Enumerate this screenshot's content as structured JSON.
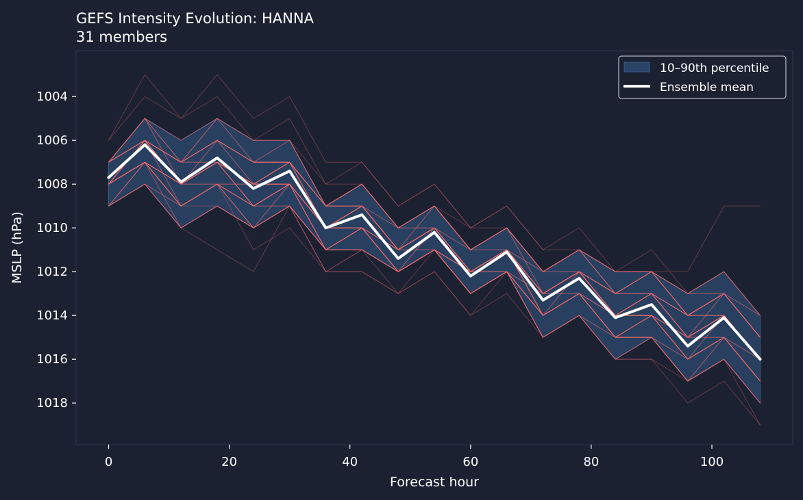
{
  "colors": {
    "background": "#1c2132",
    "axes_frame": "#2c3245",
    "band_fill": "#2a4468",
    "band_edge": "#3b5d86",
    "member_line": "#f26b6b",
    "mean_line": "#ffffff",
    "text": "#ffffff",
    "legend_border": "#aeb4c0"
  },
  "chart_data": {
    "type": "line",
    "title": "GEFS Intensity Evolution: HANNA",
    "subtitle": "31 members",
    "xlabel": "Forecast hour",
    "ylabel": "MSLP (hPa)",
    "xlim": [
      -5.4,
      113.4
    ],
    "ylim": [
      1019.9,
      1001.9
    ],
    "y_inverted": true,
    "x_ticks": [
      0,
      20,
      40,
      60,
      80,
      100
    ],
    "y_ticks": [
      1004,
      1006,
      1008,
      1010,
      1012,
      1014,
      1016,
      1018
    ],
    "grid": false,
    "legend_position": "top-right",
    "legend": [
      {
        "label": "10–90th percentile",
        "kind": "band"
      },
      {
        "label": "Ensemble mean",
        "kind": "line"
      }
    ],
    "x": [
      0,
      6,
      12,
      18,
      24,
      30,
      36,
      42,
      48,
      54,
      60,
      66,
      72,
      78,
      84,
      90,
      96,
      102,
      108
    ],
    "percentile_10": [
      1007,
      1005,
      1006,
      1005,
      1006,
      1006,
      1009,
      1008,
      1010,
      1009,
      1011,
      1010,
      1012,
      1011,
      1012,
      1012,
      1013,
      1012,
      1014
    ],
    "percentile_90": [
      1009,
      1008,
      1010,
      1009,
      1010,
      1009,
      1011,
      1011,
      1012,
      1011,
      1013,
      1012,
      1015,
      1014,
      1016,
      1015,
      1017,
      1016,
      1018
    ],
    "ensemble_mean": [
      1007.7,
      1006.2,
      1007.9,
      1006.8,
      1008.2,
      1007.4,
      1010.0,
      1009.4,
      1011.4,
      1010.2,
      1012.2,
      1011.1,
      1013.3,
      1012.3,
      1014.1,
      1013.5,
      1015.4,
      1014.1,
      1016.0
    ],
    "member_count": 31,
    "members": [
      [
        1006,
        1003,
        1005,
        1003,
        1005,
        1004,
        1007,
        1007,
        1009,
        1008,
        1010,
        1009,
        1011,
        1011,
        1012,
        1012,
        1012,
        1009,
        1009
      ],
      [
        1006,
        1004,
        1005,
        1004,
        1006,
        1005,
        1008,
        1007,
        1009,
        1008,
        1010,
        1009,
        1011,
        1010,
        1012,
        1011,
        1013,
        1012,
        1014
      ],
      [
        1007,
        1005,
        1006,
        1005,
        1006,
        1006,
        1009,
        1008,
        1010,
        1009,
        1011,
        1010,
        1012,
        1011,
        1012,
        1012,
        1013,
        1012,
        1014
      ],
      [
        1007,
        1005,
        1007,
        1005,
        1007,
        1006,
        1009,
        1008,
        1010,
        1009,
        1011,
        1010,
        1012,
        1011,
        1012,
        1012,
        1013,
        1013,
        1015
      ],
      [
        1007,
        1006,
        1007,
        1006,
        1007,
        1007,
        1009,
        1008,
        1010,
        1009,
        1011,
        1010,
        1012,
        1011,
        1013,
        1012,
        1014,
        1013,
        1015
      ],
      [
        1007,
        1006,
        1007,
        1006,
        1007,
        1007,
        1009,
        1009,
        1011,
        1009,
        1011,
        1010,
        1013,
        1012,
        1013,
        1012,
        1014,
        1013,
        1015
      ],
      [
        1007,
        1006,
        1007,
        1006,
        1007,
        1007,
        1009,
        1009,
        1011,
        1010,
        1012,
        1011,
        1013,
        1012,
        1013,
        1013,
        1014,
        1013,
        1015
      ],
      [
        1007,
        1006,
        1007,
        1007,
        1008,
        1007,
        1010,
        1009,
        1011,
        1010,
        1012,
        1011,
        1013,
        1012,
        1014,
        1013,
        1014,
        1014,
        1016
      ],
      [
        1007,
        1006,
        1008,
        1007,
        1008,
        1007,
        1010,
        1009,
        1011,
        1010,
        1012,
        1011,
        1013,
        1012,
        1014,
        1013,
        1015,
        1014,
        1016
      ],
      [
        1008,
        1006,
        1008,
        1007,
        1008,
        1007,
        1010,
        1009,
        1011,
        1010,
        1012,
        1011,
        1013,
        1012,
        1014,
        1013,
        1015,
        1014,
        1016
      ],
      [
        1008,
        1006,
        1008,
        1007,
        1008,
        1008,
        1010,
        1009,
        1011,
        1010,
        1012,
        1011,
        1013,
        1012,
        1014,
        1014,
        1015,
        1014,
        1016
      ],
      [
        1008,
        1006,
        1008,
        1007,
        1008,
        1008,
        1010,
        1010,
        1011,
        1010,
        1012,
        1011,
        1013,
        1012,
        1014,
        1014,
        1015,
        1014,
        1016
      ],
      [
        1008,
        1007,
        1008,
        1007,
        1009,
        1008,
        1010,
        1010,
        1012,
        1010,
        1012,
        1011,
        1014,
        1013,
        1014,
        1014,
        1016,
        1014,
        1016
      ],
      [
        1008,
        1007,
        1008,
        1007,
        1009,
        1008,
        1010,
        1010,
        1012,
        1011,
        1012,
        1011,
        1014,
        1013,
        1015,
        1014,
        1016,
        1015,
        1017
      ],
      [
        1008,
        1007,
        1008,
        1008,
        1009,
        1008,
        1011,
        1010,
        1012,
        1011,
        1013,
        1012,
        1014,
        1013,
        1015,
        1014,
        1016,
        1015,
        1017
      ],
      [
        1008,
        1007,
        1009,
        1008,
        1009,
        1008,
        1011,
        1010,
        1012,
        1011,
        1013,
        1012,
        1014,
        1013,
        1015,
        1015,
        1016,
        1015,
        1017
      ],
      [
        1009,
        1007,
        1009,
        1008,
        1009,
        1009,
        1011,
        1010,
        1012,
        1011,
        1013,
        1012,
        1014,
        1013,
        1015,
        1015,
        1017,
        1015,
        1017
      ],
      [
        1009,
        1008,
        1009,
        1008,
        1010,
        1009,
        1011,
        1011,
        1012,
        1011,
        1013,
        1012,
        1015,
        1014,
        1015,
        1015,
        1017,
        1016,
        1018
      ],
      [
        1009,
        1008,
        1010,
        1009,
        1010,
        1009,
        1011,
        1011,
        1012,
        1011,
        1013,
        1012,
        1015,
        1014,
        1016,
        1015,
        1017,
        1016,
        1018
      ],
      [
        1008,
        1006,
        1009,
        1008,
        1010,
        1008,
        1010,
        1009,
        1011,
        1010,
        1012,
        1011,
        1014,
        1012,
        1014,
        1013,
        1015,
        1013,
        1015
      ],
      [
        1007,
        1005,
        1008,
        1006,
        1008,
        1007,
        1009,
        1008,
        1010,
        1009,
        1011,
        1010,
        1012,
        1011,
        1013,
        1012,
        1014,
        1013,
        1014
      ],
      [
        1009,
        1007,
        1010,
        1009,
        1010,
        1009,
        1012,
        1011,
        1012,
        1011,
        1013,
        1012,
        1014,
        1013,
        1015,
        1014,
        1016,
        1015,
        1017
      ],
      [
        1008,
        1006,
        1008,
        1007,
        1009,
        1008,
        1011,
        1010,
        1011,
        1010,
        1012,
        1011,
        1013,
        1012,
        1013,
        1013,
        1014,
        1013,
        1015
      ],
      [
        1007,
        1006,
        1007,
        1006,
        1007,
        1007,
        1009,
        1009,
        1010,
        1010,
        1011,
        1011,
        1012,
        1012,
        1013,
        1012,
        1014,
        1014,
        1016
      ],
      [
        1009,
        1008,
        1010,
        1009,
        1010,
        1009,
        1011,
        1011,
        1012,
        1011,
        1012,
        1012,
        1014,
        1013,
        1015,
        1014,
        1016,
        1015,
        1016
      ],
      [
        1008,
        1007,
        1009,
        1008,
        1008,
        1008,
        1010,
        1010,
        1011,
        1010,
        1012,
        1011,
        1013,
        1012,
        1014,
        1013,
        1015,
        1014,
        1016
      ],
      [
        1007,
        1005,
        1007,
        1005,
        1006,
        1006,
        1008,
        1008,
        1010,
        1009,
        1010,
        1010,
        1012,
        1011,
        1012,
        1012,
        1013,
        1012,
        1014
      ],
      [
        1008,
        1007,
        1008,
        1007,
        1008,
        1008,
        1010,
        1009,
        1011,
        1011,
        1012,
        1012,
        1013,
        1013,
        1014,
        1014,
        1015,
        1015,
        1017
      ],
      [
        1009,
        1007,
        1009,
        1009,
        1010,
        1009,
        1012,
        1012,
        1013,
        1012,
        1014,
        1013,
        1015,
        1014,
        1016,
        1016,
        1018,
        1017,
        1019
      ],
      [
        1008,
        1007,
        1010,
        1011,
        1012,
        1009,
        1012,
        1012,
        1013,
        1012,
        1014,
        1012,
        1015,
        1014,
        1016,
        1016,
        1017,
        1016,
        1018
      ],
      [
        1008,
        1007,
        1009,
        1008,
        1011,
        1010,
        1012,
        1011,
        1013,
        1011,
        1013,
        1012,
        1015,
        1014,
        1016,
        1015,
        1017,
        1016,
        1019
      ]
    ]
  }
}
